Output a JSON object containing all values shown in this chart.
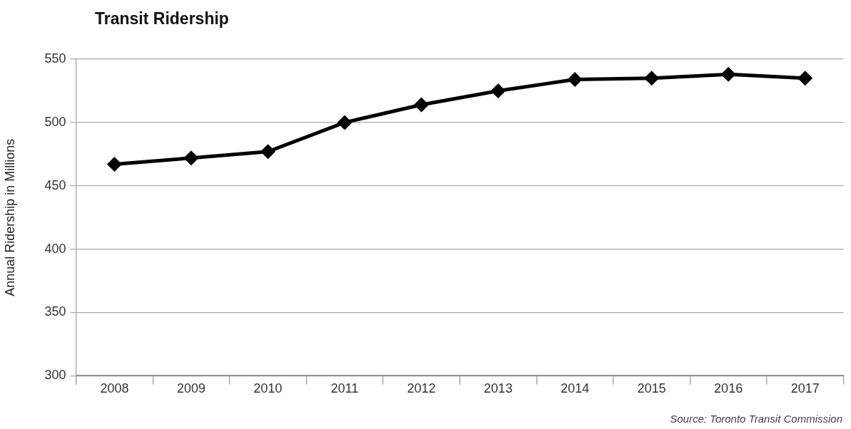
{
  "chart_data": {
    "type": "line",
    "title": "Transit Ridership",
    "ylabel": "Annual Ridership in Millions",
    "annotations": [
      "Source: Toronto Transit Commission"
    ],
    "categories": [
      "2008",
      "2009",
      "2010",
      "2011",
      "2012",
      "2013",
      "2014",
      "2015",
      "2016",
      "2017"
    ],
    "series": [
      {
        "color": "#000000",
        "values": [
          467,
          472,
          477,
          500,
          514,
          525,
          534,
          535,
          538,
          535
        ]
      }
    ],
    "ylim": [
      300,
      550
    ],
    "yticks": [
      300,
      350,
      400,
      450,
      500,
      550
    ],
    "grid": "y",
    "marker": "diamond",
    "line_style": "solid"
  }
}
